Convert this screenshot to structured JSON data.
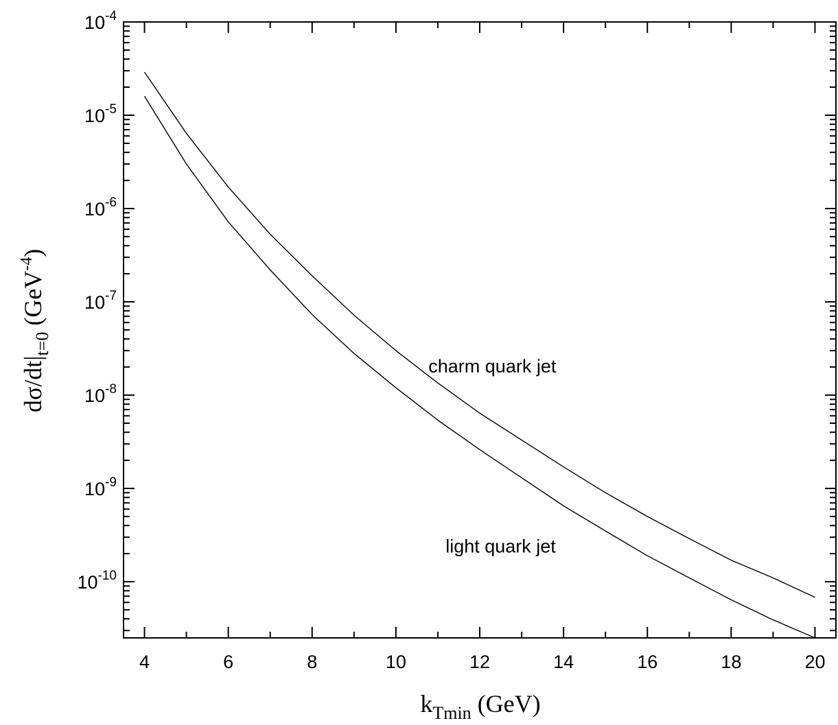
{
  "chart_data": {
    "type": "line",
    "xscale": "linear",
    "yscale": "log",
    "xlim": [
      3.5,
      20.5
    ],
    "ylim": [
      2.5e-11,
      0.0001
    ],
    "grid": false,
    "xlabel": {
      "main": "k",
      "sub": "Tmin",
      "rest": " (GeV)"
    },
    "ylabel": {
      "main": "dσ/dt|",
      "sub": "t=0",
      "mid": "  (GeV",
      "sup": "-4",
      "end": ")"
    },
    "x_ticks": [
      {
        "value": 4,
        "label": "4"
      },
      {
        "value": 6,
        "label": "6"
      },
      {
        "value": 8,
        "label": "8"
      },
      {
        "value": 10,
        "label": "10"
      },
      {
        "value": 12,
        "label": "12"
      },
      {
        "value": 14,
        "label": "14"
      },
      {
        "value": 16,
        "label": "16"
      },
      {
        "value": 18,
        "label": "18"
      },
      {
        "value": 20,
        "label": "20"
      }
    ],
    "y_ticks": [
      {
        "exp": -4,
        "base": "10",
        "sup": "-4"
      },
      {
        "exp": -5,
        "base": "10",
        "sup": "-5"
      },
      {
        "exp": -6,
        "base": "10",
        "sup": "-6"
      },
      {
        "exp": -7,
        "base": "10",
        "sup": "-7"
      },
      {
        "exp": -8,
        "base": "10",
        "sup": "-8"
      },
      {
        "exp": -9,
        "base": "10",
        "sup": "-9"
      },
      {
        "exp": -10,
        "base": "10",
        "sup": "-10"
      }
    ],
    "series": [
      {
        "name": "charm quark jet",
        "x": [
          4,
          5,
          6,
          7,
          8,
          9,
          10,
          11,
          12,
          13,
          14,
          15,
          16,
          17,
          18,
          19,
          20
        ],
        "y": [
          2.9e-05,
          6.4e-06,
          1.7e-06,
          5.3e-07,
          1.9e-07,
          7.2e-08,
          3e-08,
          1.35e-08,
          6.4e-09,
          3.3e-09,
          1.7e-09,
          9e-10,
          5e-10,
          2.9e-10,
          1.7e-10,
          1.1e-10,
          6.8e-11
        ]
      },
      {
        "name": "light quark jet",
        "x": [
          4,
          5,
          6,
          7,
          8,
          9,
          10,
          11,
          12,
          13,
          14,
          15,
          16,
          17,
          18,
          19,
          20
        ],
        "y": [
          1.6e-05,
          3e-06,
          7.2e-07,
          2.2e-07,
          7.3e-08,
          2.8e-08,
          1.2e-08,
          5.4e-09,
          2.6e-09,
          1.3e-09,
          6.5e-10,
          3.5e-10,
          1.9e-10,
          1.1e-10,
          6.4e-11,
          3.9e-11,
          2.5e-11
        ]
      }
    ],
    "annotations": [
      {
        "text": "charm quark jet",
        "x": 12.3,
        "y": 1.75e-08
      },
      {
        "text": "light quark jet",
        "x": 12.5,
        "y": 2.05e-10
      }
    ]
  }
}
